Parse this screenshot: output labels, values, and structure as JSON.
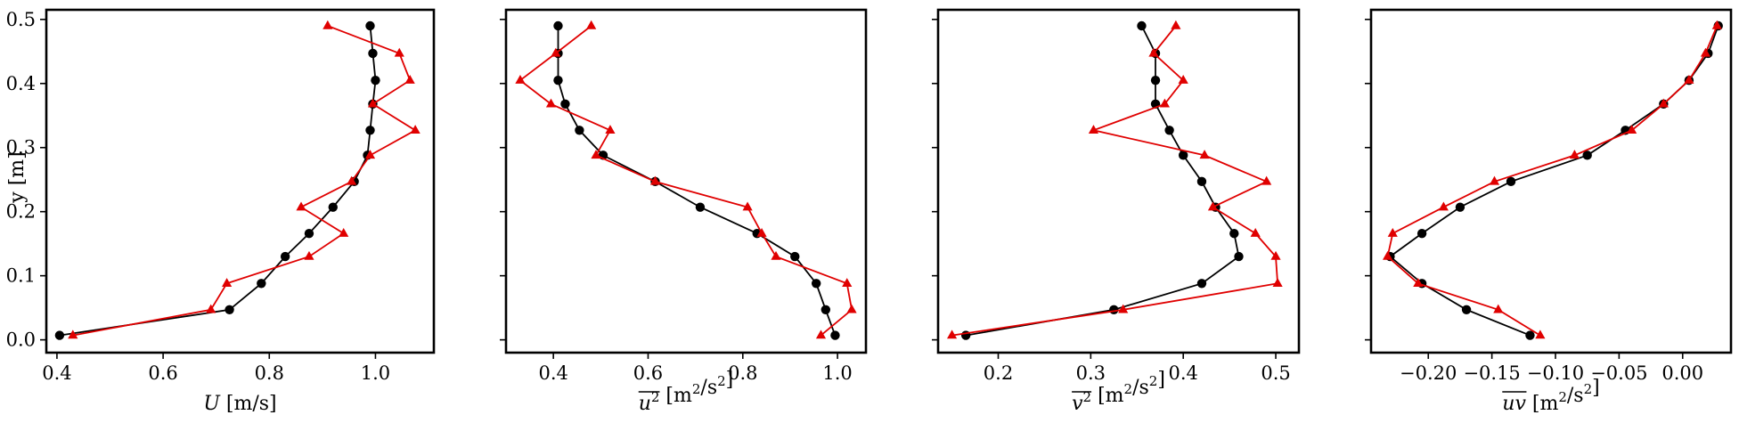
{
  "figure": {
    "shared_ylabel": "y [m]",
    "colors": {
      "reference": "#000000",
      "model": "#e00000"
    }
  },
  "chart_data": [
    {
      "type": "line",
      "xlabel_parts": [
        {
          "t": "U",
          "it": true
        },
        {
          "t": " [m/s]"
        }
      ],
      "xlim": [
        0.38,
        1.11
      ],
      "ylim": [
        -0.02,
        0.515
      ],
      "xticks": [
        0.4,
        0.6,
        0.8,
        1.0
      ],
      "xtick_labels": [
        "0.4",
        "0.6",
        "0.8",
        "1.0"
      ],
      "yticks": [
        0.0,
        0.1,
        0.2,
        0.3,
        0.4,
        0.5
      ],
      "ytick_labels": [
        "0.0",
        "0.1",
        "0.2",
        "0.3",
        "0.4",
        "0.5"
      ],
      "series": [
        {
          "marker": "circle",
          "color": "#000000",
          "x": [
            0.405,
            0.725,
            0.785,
            0.83,
            0.875,
            0.92,
            0.96,
            0.985,
            0.99,
            0.995,
            1.0,
            0.995,
            0.99
          ],
          "y": [
            0.007,
            0.047,
            0.088,
            0.13,
            0.166,
            0.207,
            0.247,
            0.288,
            0.327,
            0.368,
            0.405,
            0.447,
            0.49
          ]
        },
        {
          "marker": "triangle",
          "color": "#e00000",
          "x": [
            0.43,
            0.69,
            0.72,
            0.875,
            0.94,
            0.86,
            0.955,
            0.99,
            1.075,
            0.995,
            1.065,
            1.045,
            0.91
          ],
          "y": [
            0.007,
            0.047,
            0.088,
            0.13,
            0.166,
            0.207,
            0.247,
            0.288,
            0.327,
            0.368,
            0.405,
            0.447,
            0.49
          ]
        }
      ]
    },
    {
      "type": "line",
      "xlabel_parts": [
        {
          "t": "u",
          "it": true,
          "ov": true,
          "sup": "2"
        },
        {
          "t": " [m"
        },
        {
          "t": "2",
          "sup": true
        },
        {
          "t": "/s"
        },
        {
          "t": "2",
          "sup": true
        },
        {
          "t": "]"
        }
      ],
      "xlim": [
        0.3,
        1.06
      ],
      "ylim": [
        -0.02,
        0.515
      ],
      "xticks": [
        0.4,
        0.6,
        0.8,
        1.0
      ],
      "xtick_labels": [
        "0.4",
        "0.6",
        "0.8",
        "1.0"
      ],
      "yticks": [
        0.0,
        0.1,
        0.2,
        0.3,
        0.4,
        0.5
      ],
      "ytick_labels": [],
      "series": [
        {
          "marker": "circle",
          "color": "#000000",
          "x": [
            0.995,
            0.975,
            0.955,
            0.91,
            0.83,
            0.71,
            0.615,
            0.505,
            0.455,
            0.425,
            0.41,
            0.41,
            0.41
          ],
          "y": [
            0.007,
            0.047,
            0.088,
            0.13,
            0.166,
            0.207,
            0.247,
            0.288,
            0.327,
            0.368,
            0.405,
            0.447,
            0.49
          ]
        },
        {
          "marker": "triangle",
          "color": "#e00000",
          "x": [
            0.965,
            1.03,
            1.02,
            0.87,
            0.84,
            0.81,
            0.615,
            0.49,
            0.52,
            0.395,
            0.33,
            0.405,
            0.48
          ],
          "y": [
            0.007,
            0.047,
            0.088,
            0.13,
            0.166,
            0.207,
            0.247,
            0.288,
            0.327,
            0.368,
            0.405,
            0.447,
            0.49
          ]
        }
      ]
    },
    {
      "type": "line",
      "xlabel_parts": [
        {
          "t": "v",
          "it": true,
          "ov": true,
          "sup": "2"
        },
        {
          "t": " [m"
        },
        {
          "t": "2",
          "sup": true
        },
        {
          "t": "/s"
        },
        {
          "t": "2",
          "sup": true
        },
        {
          "t": "]"
        }
      ],
      "xlim": [
        0.135,
        0.525
      ],
      "ylim": [
        -0.02,
        0.515
      ],
      "xticks": [
        0.2,
        0.3,
        0.4,
        0.5
      ],
      "xtick_labels": [
        "0.2",
        "0.3",
        "0.4",
        "0.5"
      ],
      "yticks": [
        0.0,
        0.1,
        0.2,
        0.3,
        0.4,
        0.5
      ],
      "ytick_labels": [],
      "series": [
        {
          "marker": "circle",
          "color": "#000000",
          "x": [
            0.165,
            0.325,
            0.42,
            0.46,
            0.455,
            0.435,
            0.42,
            0.4,
            0.385,
            0.37,
            0.37,
            0.37,
            0.355
          ],
          "y": [
            0.007,
            0.047,
            0.088,
            0.13,
            0.166,
            0.207,
            0.247,
            0.288,
            0.327,
            0.368,
            0.405,
            0.447,
            0.49
          ]
        },
        {
          "marker": "triangle",
          "color": "#e00000",
          "x": [
            0.15,
            0.335,
            0.502,
            0.5,
            0.478,
            0.432,
            0.49,
            0.423,
            0.303,
            0.38,
            0.4,
            0.368,
            0.392
          ],
          "y": [
            0.007,
            0.047,
            0.088,
            0.13,
            0.166,
            0.207,
            0.247,
            0.288,
            0.327,
            0.368,
            0.405,
            0.447,
            0.49
          ]
        }
      ]
    },
    {
      "type": "line",
      "xlabel_parts": [
        {
          "t": "uv",
          "it": true,
          "ov": true
        },
        {
          "t": " [m"
        },
        {
          "t": "2",
          "sup": true
        },
        {
          "t": "/s"
        },
        {
          "t": "2",
          "sup": true
        },
        {
          "t": "]"
        }
      ],
      "xlim": [
        -0.245,
        0.038
      ],
      "ylim": [
        -0.02,
        0.515
      ],
      "xticks": [
        -0.2,
        -0.15,
        -0.1,
        -0.05,
        0.0
      ],
      "xtick_labels": [
        "−0.20",
        "−0.15",
        "−0.10",
        "−0.05",
        "0.00"
      ],
      "yticks": [
        0.0,
        0.1,
        0.2,
        0.3,
        0.4,
        0.5
      ],
      "ytick_labels": [],
      "series": [
        {
          "marker": "circle",
          "color": "#000000",
          "x": [
            -0.12,
            -0.17,
            -0.205,
            -0.23,
            -0.205,
            -0.175,
            -0.135,
            -0.075,
            -0.045,
            -0.015,
            0.005,
            0.02,
            0.028
          ],
          "y": [
            0.007,
            0.047,
            0.088,
            0.13,
            0.166,
            0.207,
            0.247,
            0.288,
            0.327,
            0.368,
            0.405,
            0.447,
            0.49
          ]
        },
        {
          "marker": "triangle",
          "color": "#e00000",
          "x": [
            -0.112,
            -0.145,
            -0.208,
            -0.232,
            -0.228,
            -0.188,
            -0.148,
            -0.085,
            -0.04,
            -0.015,
            0.005,
            0.018,
            0.027
          ],
          "y": [
            0.007,
            0.047,
            0.088,
            0.13,
            0.166,
            0.207,
            0.247,
            0.288,
            0.327,
            0.368,
            0.405,
            0.447,
            0.49
          ]
        }
      ]
    }
  ]
}
